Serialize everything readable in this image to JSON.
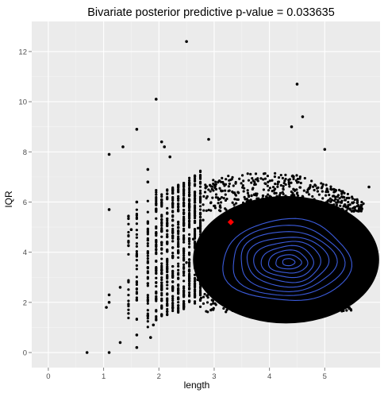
{
  "chart_data": {
    "type": "scatter",
    "title": "Bivariate posterior predictive p-value = 0.033635",
    "xlabel": "length",
    "ylabel": "IQR",
    "xlim": [
      -0.3,
      6.0
    ],
    "ylim": [
      -0.6,
      13.2
    ],
    "x_ticks": [
      0,
      1,
      2,
      3,
      4,
      5
    ],
    "y_ticks": [
      0,
      2,
      4,
      6,
      8,
      10,
      12
    ],
    "x_tick_labels": [
      "0",
      "1",
      "2",
      "3",
      "4",
      "5"
    ],
    "y_tick_labels": [
      "0",
      "2",
      "4",
      "6",
      "8",
      "10",
      "12"
    ],
    "grid": true,
    "background": "#ebebeb",
    "grid_color": "#ffffff",
    "point_color": "#000000",
    "contour_color": "#3b5bdb",
    "observed_color": "#ff0000",
    "observed_point": {
      "x": 3.3,
      "y": 5.2
    },
    "dense_cloud": {
      "center_x": 4.3,
      "center_y": 3.7,
      "x_range": [
        2.3,
        5.85
      ],
      "y_range": [
        1.6,
        6.6
      ]
    },
    "scattered_points": [
      [
        0.7,
        0.0
      ],
      [
        1.1,
        0.0
      ],
      [
        1.6,
        0.2
      ],
      [
        1.05,
        1.8
      ],
      [
        1.1,
        2.3
      ],
      [
        1.1,
        2.0
      ],
      [
        1.1,
        5.7
      ],
      [
        1.1,
        7.9
      ],
      [
        1.35,
        8.2
      ],
      [
        1.6,
        8.9
      ],
      [
        1.95,
        10.1
      ],
      [
        2.5,
        12.4
      ],
      [
        1.6,
        6.0
      ],
      [
        1.8,
        7.3
      ],
      [
        1.8,
        6.8
      ],
      [
        2.1,
        8.2
      ],
      [
        2.2,
        7.8
      ],
      [
        2.9,
        8.5
      ],
      [
        2.05,
        8.4
      ],
      [
        4.4,
        9.0
      ],
      [
        4.5,
        10.7
      ],
      [
        4.6,
        9.4
      ],
      [
        5.0,
        8.1
      ],
      [
        5.8,
        6.6
      ],
      [
        1.3,
        0.4
      ],
      [
        1.6,
        0.7
      ],
      [
        1.85,
        0.6
      ],
      [
        1.3,
        2.6
      ],
      [
        1.9,
        1.1
      ],
      [
        1.5,
        4.9
      ]
    ],
    "contours": [
      {
        "cx": 4.35,
        "cy": 3.6,
        "rx": 1.15,
        "ry": 1.6
      },
      {
        "cx": 4.35,
        "cy": 3.6,
        "rx": 1.0,
        "ry": 1.38
      },
      {
        "cx": 4.35,
        "cy": 3.6,
        "rx": 0.86,
        "ry": 1.18
      },
      {
        "cx": 4.35,
        "cy": 3.6,
        "rx": 0.73,
        "ry": 0.98
      },
      {
        "cx": 4.35,
        "cy": 3.6,
        "rx": 0.6,
        "ry": 0.8
      },
      {
        "cx": 4.35,
        "cy": 3.6,
        "rx": 0.47,
        "ry": 0.62
      },
      {
        "cx": 4.35,
        "cy": 3.6,
        "rx": 0.35,
        "ry": 0.45
      },
      {
        "cx": 4.35,
        "cy": 3.6,
        "rx": 0.23,
        "ry": 0.28
      },
      {
        "cx": 4.35,
        "cy": 3.6,
        "rx": 0.11,
        "ry": 0.14
      }
    ]
  }
}
